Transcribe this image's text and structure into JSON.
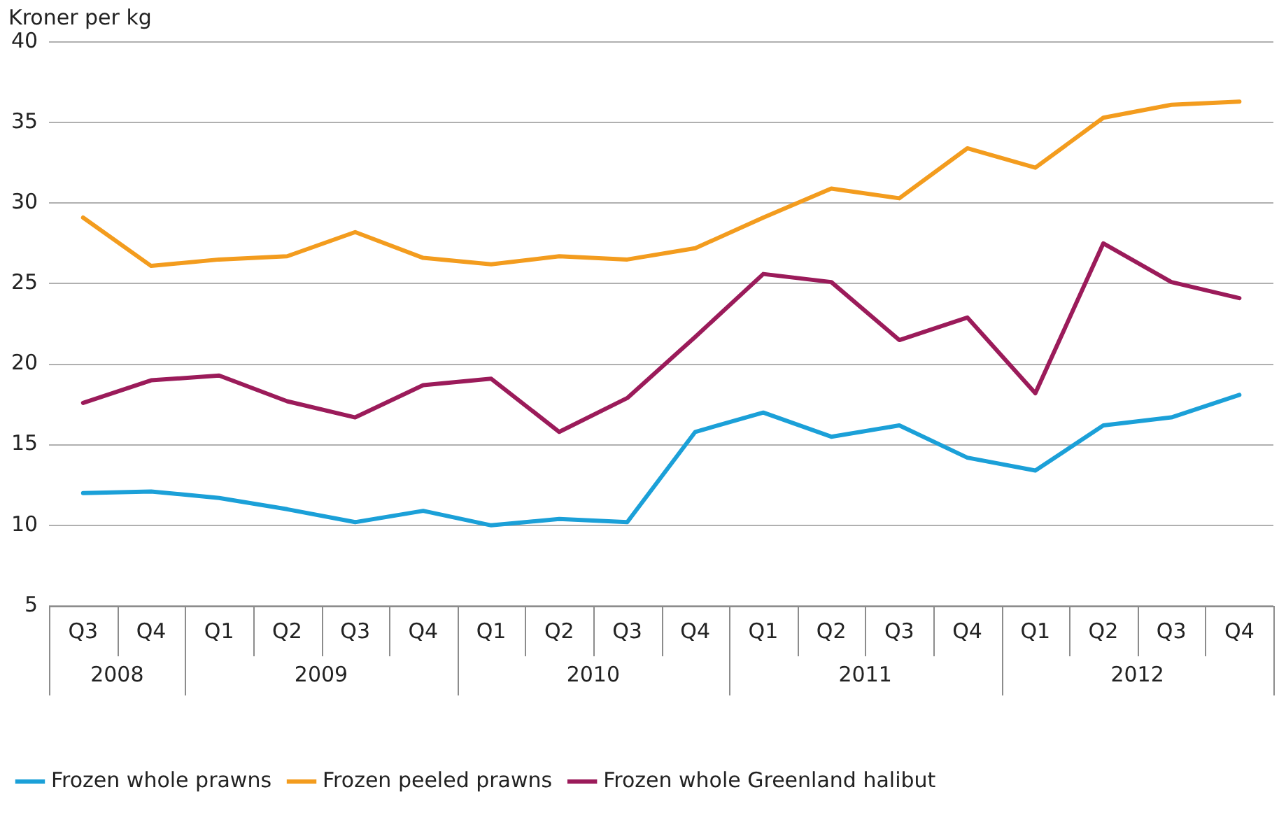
{
  "chart_data": {
    "type": "line",
    "ylabel": "Kroner per kg",
    "categories": [
      "Q3",
      "Q4",
      "Q1",
      "Q2",
      "Q3",
      "Q4",
      "Q1",
      "Q2",
      "Q3",
      "Q4",
      "Q1",
      "Q2",
      "Q3",
      "Q4",
      "Q1",
      "Q2",
      "Q3",
      "Q4"
    ],
    "annotations": [
      "2008",
      "2009",
      "2010",
      "2011",
      "2012"
    ],
    "series": [
      {
        "name": "Frozen whole prawns",
        "color": "#1ba0d8",
        "values": [
          12.0,
          12.1,
          11.7,
          11.0,
          10.2,
          10.9,
          10.0,
          10.4,
          10.2,
          15.8,
          17.0,
          15.5,
          16.2,
          14.2,
          13.4,
          16.2,
          16.7,
          18.1
        ]
      },
      {
        "name": "Frozen peeled prawns",
        "color": "#f39c1e",
        "values": [
          29.1,
          26.1,
          26.5,
          26.7,
          28.2,
          26.6,
          26.2,
          26.7,
          26.5,
          27.2,
          29.1,
          30.9,
          30.3,
          33.4,
          32.2,
          35.3,
          36.1,
          36.3
        ]
      },
      {
        "name": "Frozen whole Greenland halibut",
        "color": "#9b1b5a",
        "values": [
          17.6,
          19.0,
          19.3,
          17.7,
          16.7,
          18.7,
          19.1,
          15.8,
          17.9,
          21.7,
          25.6,
          25.1,
          21.5,
          22.9,
          18.2,
          27.5,
          25.1,
          24.1
        ]
      }
    ],
    "ylim": [
      5,
      40
    ],
    "yticks": [
      5,
      10,
      15,
      20,
      25,
      30,
      35,
      40
    ],
    "grid": "y",
    "legend": "bottom left",
    "marker": "none",
    "line_style": "solid"
  }
}
